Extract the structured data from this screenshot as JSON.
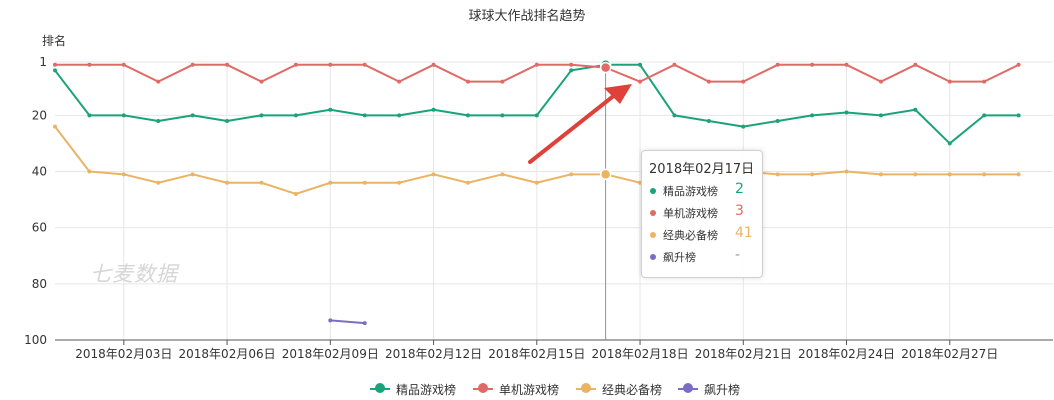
{
  "chart_data": {
    "type": "line",
    "title": "球球大作战排名趋势",
    "ylabel": "排名",
    "xlabel": "",
    "ylim": [
      1,
      100
    ],
    "y_inverted": true,
    "yticks": [
      1,
      20,
      40,
      60,
      80,
      100
    ],
    "grid": true,
    "legend": "bottom",
    "x": [
      "2018-02-01",
      "2018-02-02",
      "2018-02-03",
      "2018-02-04",
      "2018-02-05",
      "2018-02-06",
      "2018-02-07",
      "2018-02-08",
      "2018-02-09",
      "2018-02-10",
      "2018-02-11",
      "2018-02-12",
      "2018-02-13",
      "2018-02-14",
      "2018-02-15",
      "2018-02-16",
      "2018-02-17",
      "2018-02-18",
      "2018-02-19",
      "2018-02-20",
      "2018-02-21",
      "2018-02-22",
      "2018-02-23",
      "2018-02-24",
      "2018-02-25",
      "2018-02-26",
      "2018-02-27",
      "2018-02-28",
      "2018-03-01",
      "2018-03-02"
    ],
    "x_tick_labels": [
      {
        "date": "2018-02-03",
        "label": "2018年02月03日"
      },
      {
        "date": "2018-02-06",
        "label": "2018年02月06日"
      },
      {
        "date": "2018-02-09",
        "label": "2018年02月09日"
      },
      {
        "date": "2018-02-12",
        "label": "2018年02月12日"
      },
      {
        "date": "2018-02-15",
        "label": "2018年02月15日"
      },
      {
        "date": "2018-02-18",
        "label": "2018年02月18日"
      },
      {
        "date": "2018-02-21",
        "label": "2018年02月21日"
      },
      {
        "date": "2018-02-24",
        "label": "2018年02月24日"
      },
      {
        "date": "2018-02-27",
        "label": "2018年02月27日"
      }
    ],
    "series": [
      {
        "name": "精品游戏榜",
        "color": "#1aa37a",
        "values": [
          4,
          20,
          20,
          22,
          20,
          22,
          20,
          20,
          18,
          20,
          20,
          18,
          20,
          20,
          20,
          4,
          2,
          2,
          20,
          22,
          24,
          22,
          20,
          19,
          20,
          18,
          30,
          20,
          20,
          null
        ]
      },
      {
        "name": "单机游戏榜",
        "color": "#e06a66",
        "values": [
          2,
          2,
          2,
          8,
          2,
          2,
          8,
          2,
          2,
          2,
          8,
          2,
          8,
          8,
          2,
          2,
          3,
          8,
          2,
          8,
          8,
          2,
          2,
          2,
          8,
          2,
          8,
          8,
          2,
          null
        ]
      },
      {
        "name": "经典必备榜",
        "color": "#eab464",
        "values": [
          24,
          40,
          41,
          44,
          41,
          44,
          44,
          48,
          44,
          44,
          44,
          41,
          44,
          41,
          44,
          41,
          41,
          44,
          41,
          41,
          40,
          41,
          41,
          40,
          41,
          41,
          41,
          41,
          41,
          null
        ]
      },
      {
        "name": "飙升榜",
        "color": "#7b6dc4",
        "values": [
          null,
          null,
          null,
          null,
          null,
          null,
          null,
          null,
          93,
          94,
          null,
          null,
          null,
          null,
          null,
          null,
          null,
          null,
          null,
          null,
          null,
          null,
          null,
          null,
          null,
          null,
          null,
          null,
          null,
          null
        ]
      }
    ],
    "highlight_index": 16,
    "tooltip": {
      "date": "2018年02月17日",
      "rows": [
        {
          "name": "精品游戏榜",
          "value": "2",
          "color": "#1aa37a"
        },
        {
          "name": "单机游戏榜",
          "value": "3",
          "color": "#e06a66"
        },
        {
          "name": "经典必备榜",
          "value": "41",
          "color": "#eab464"
        },
        {
          "name": "飙升榜",
          "value": "-",
          "color": "#7b6dc4"
        }
      ]
    },
    "annotation_arrow_color": "#e0403a"
  },
  "watermark": "七麦数据"
}
